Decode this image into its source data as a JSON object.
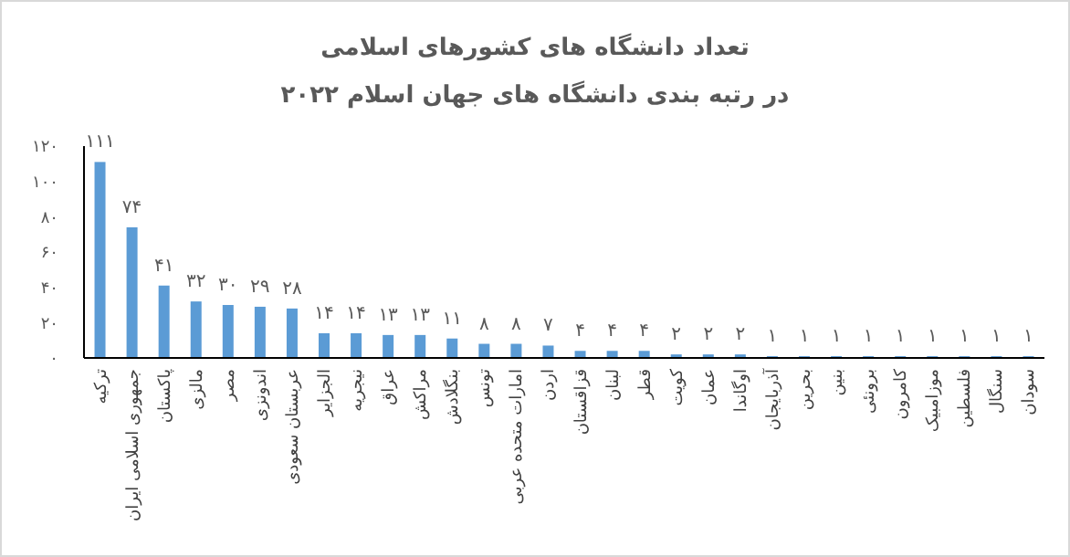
{
  "chart_data": {
    "type": "bar",
    "title": "تعداد دانشگاه های کشورهای اسلامی",
    "subtitle": "در رتبه بندی دانشگاه های جهان اسلام ۲۰۲۲",
    "categories": [
      "ترکیه",
      "جمهوری اسلامی ایران",
      "پاکستان",
      "مالزی",
      "مصر",
      "اندونزی",
      "عربستان سعودی",
      "الجزایر",
      "نیجریه",
      "عراق",
      "مراکش",
      "بنگلادش",
      "تونس",
      "امارات متحده عربی",
      "اردن",
      "قزاقستان",
      "لبنان",
      "قطر",
      "کویت",
      "عمان",
      "اوگاندا",
      "آذربایجان",
      "بحرین",
      "بنین",
      "برونئی",
      "کامرون",
      "موزامبیک",
      "فلسطین",
      "سنگال",
      "سودان"
    ],
    "values": [
      111,
      74,
      41,
      32,
      30,
      29,
      28,
      14,
      14,
      13,
      13,
      11,
      8,
      8,
      7,
      4,
      4,
      4,
      2,
      2,
      2,
      1,
      1,
      1,
      1,
      1,
      1,
      1,
      1,
      1
    ],
    "value_labels": [
      "۱۱۱",
      "۷۴",
      "۴۱",
      "۳۲",
      "۳۰",
      "۲۹",
      "۲۸",
      "۱۴",
      "۱۴",
      "۱۳",
      "۱۳",
      "۱۱",
      "۸",
      "۸",
      "۷",
      "۴",
      "۴",
      "۴",
      "۲",
      "۲",
      "۲",
      "۱",
      "۱",
      "۱",
      "۱",
      "۱",
      "۱",
      "۱",
      "۱",
      "۱"
    ],
    "color": "#5b9bd5",
    "ylim": [
      0,
      120
    ],
    "yticks": [
      {
        "value": 0,
        "label": "۰"
      },
      {
        "value": 20,
        "label": "۲۰"
      },
      {
        "value": 40,
        "label": "۴۰"
      },
      {
        "value": 60,
        "label": "۶۰"
      },
      {
        "value": 80,
        "label": "۸۰"
      },
      {
        "value": 100,
        "label": "۱۰۰"
      },
      {
        "value": 120,
        "label": "۱۲۰"
      }
    ]
  }
}
